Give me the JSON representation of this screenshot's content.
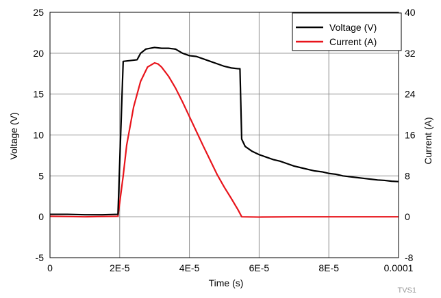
{
  "chart_data": {
    "type": "line",
    "xlabel": "Time (s)",
    "ylabel_left": "Voltage (V)",
    "ylabel_right": "Current (A)",
    "xlim": [
      0,
      0.0001
    ],
    "ylim_left": [
      -5,
      25
    ],
    "ylim_right": [
      -8,
      40
    ],
    "x_ticks": [
      0,
      2e-05,
      4e-05,
      6e-05,
      8e-05,
      0.0001
    ],
    "x_tick_labels": [
      "0",
      "2E-5",
      "4E-5",
      "6E-5",
      "8E-5",
      "0.0001"
    ],
    "y_left_ticks": [
      -5,
      0,
      5,
      10,
      15,
      20,
      25
    ],
    "y_left_tick_labels": [
      "-5",
      "0",
      "5",
      "10",
      "15",
      "20",
      "25"
    ],
    "y_right_ticks": [
      -8,
      0,
      8,
      16,
      24,
      32,
      40
    ],
    "y_right_tick_labels": [
      "-8",
      "0",
      "8",
      "16",
      "24",
      "32",
      "40"
    ],
    "grid": true,
    "legend_position": "top-right",
    "watermark": "TVS1",
    "series": [
      {
        "name": "Voltage (V)",
        "color": "#000000",
        "axis": "left",
        "points": [
          [
            0,
            0.3
          ],
          [
            5e-06,
            0.3
          ],
          [
            1e-05,
            0.25
          ],
          [
            1.5e-05,
            0.25
          ],
          [
            1.95e-05,
            0.3
          ],
          [
            2.1e-05,
            19.0
          ],
          [
            2.5e-05,
            19.2
          ],
          [
            2.6e-05,
            20.0
          ],
          [
            2.75e-05,
            20.5
          ],
          [
            3e-05,
            20.7
          ],
          [
            3.2e-05,
            20.6
          ],
          [
            3.4e-05,
            20.6
          ],
          [
            3.6e-05,
            20.5
          ],
          [
            3.8e-05,
            20.0
          ],
          [
            4e-05,
            19.7
          ],
          [
            4.2e-05,
            19.6
          ],
          [
            4.4e-05,
            19.3
          ],
          [
            4.6e-05,
            19.0
          ],
          [
            4.8e-05,
            18.7
          ],
          [
            5e-05,
            18.4
          ],
          [
            5.2e-05,
            18.2
          ],
          [
            5.4e-05,
            18.1
          ],
          [
            5.45e-05,
            18.1
          ],
          [
            5.5e-05,
            9.5
          ],
          [
            5.6e-05,
            8.6
          ],
          [
            5.8e-05,
            8.0
          ],
          [
            6e-05,
            7.6
          ],
          [
            6.2e-05,
            7.3
          ],
          [
            6.4e-05,
            7.0
          ],
          [
            6.6e-05,
            6.8
          ],
          [
            6.8e-05,
            6.5
          ],
          [
            7e-05,
            6.2
          ],
          [
            7.2e-05,
            6.0
          ],
          [
            7.4e-05,
            5.8
          ],
          [
            7.6e-05,
            5.6
          ],
          [
            7.8e-05,
            5.5
          ],
          [
            8e-05,
            5.3
          ],
          [
            8.2e-05,
            5.2
          ],
          [
            8.4e-05,
            5.0
          ],
          [
            8.6e-05,
            4.9
          ],
          [
            8.8e-05,
            4.8
          ],
          [
            9e-05,
            4.7
          ],
          [
            9.2e-05,
            4.6
          ],
          [
            9.4e-05,
            4.5
          ],
          [
            9.6e-05,
            4.45
          ],
          [
            9.8e-05,
            4.35
          ],
          [
            0.0001,
            4.3
          ]
        ]
      },
      {
        "name": "Current (A)",
        "color": "#e8141b",
        "axis": "right",
        "points": [
          [
            0,
            0.1
          ],
          [
            1e-05,
            0.0
          ],
          [
            1.95e-05,
            0.1
          ],
          [
            2.1e-05,
            8.0
          ],
          [
            2.2e-05,
            14.0
          ],
          [
            2.4e-05,
            21.5
          ],
          [
            2.6e-05,
            26.5
          ],
          [
            2.8e-05,
            29.3
          ],
          [
            3e-05,
            30.1
          ],
          [
            3.1e-05,
            29.9
          ],
          [
            3.2e-05,
            29.3
          ],
          [
            3.4e-05,
            27.5
          ],
          [
            3.6e-05,
            25.2
          ],
          [
            3.8e-05,
            22.5
          ],
          [
            4e-05,
            19.6
          ],
          [
            4.2e-05,
            16.7
          ],
          [
            4.4e-05,
            13.8
          ],
          [
            4.6e-05,
            11.0
          ],
          [
            4.8e-05,
            8.2
          ],
          [
            5e-05,
            5.8
          ],
          [
            5.2e-05,
            3.6
          ],
          [
            5.4e-05,
            1.3
          ],
          [
            5.5e-05,
            0.0
          ],
          [
            6e-05,
            -0.05
          ],
          [
            7e-05,
            0.0
          ],
          [
            8e-05,
            0.0
          ],
          [
            9e-05,
            0.0
          ],
          [
            0.0001,
            0.0
          ]
        ]
      }
    ]
  }
}
